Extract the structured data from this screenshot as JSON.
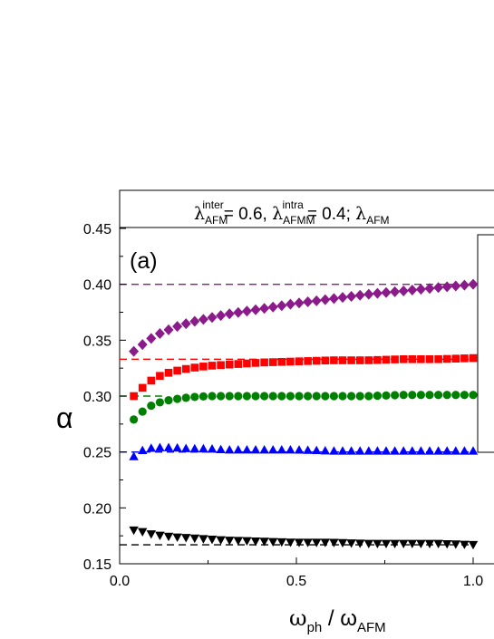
{
  "chart_data": {
    "type": "scatter",
    "panel_label": "(a)",
    "header": {
      "sym1": "λ",
      "sub1": "AFM",
      "sup1": "inter",
      "val1": "= 0.6, ",
      "sym2": "λ",
      "sub2": "AFMM",
      "sup2": "intra",
      "val2": "= 0.4; ",
      "sym3": "λ",
      "sub3": "AFM"
    },
    "xlabel": {
      "main": "ω",
      "sub": "ph",
      "slash": " / ω",
      "sub2": "AFM"
    },
    "ylabel": "α",
    "xlim": [
      0.0,
      1.08
    ],
    "ylim": [
      0.15,
      0.455
    ],
    "x_ticks": [
      {
        "v": 0.0,
        "label": "0.0"
      },
      {
        "v": 0.5,
        "label": "0.5"
      },
      {
        "v": 1.0,
        "label": "1.0"
      }
    ],
    "y_ticks": [
      {
        "v": 0.15,
        "label": "0.15"
      },
      {
        "v": 0.2,
        "label": "0.20"
      },
      {
        "v": 0.25,
        "label": "0.25"
      },
      {
        "v": 0.3,
        "label": "0.30"
      },
      {
        "v": 0.35,
        "label": "0.35"
      },
      {
        "v": 0.4,
        "label": "0.40"
      },
      {
        "v": 0.45,
        "label": "0.45"
      }
    ],
    "ref_lines": [
      {
        "y": 0.4,
        "color": "#8b1a8b",
        "x_end": 0.98
      },
      {
        "y": 0.333,
        "color": "#ff0000",
        "x_end": 1.0
      },
      {
        "y": 0.3,
        "color": "#008000",
        "x_end": 0.12
      },
      {
        "y": 0.25,
        "color": "#0000ff",
        "x_end": 1.0
      },
      {
        "y": 0.167,
        "color": "#000000",
        "x_end": 1.0
      }
    ],
    "series": [
      {
        "marker": "diamond",
        "color": "#8b1a8b",
        "x": [
          0.04,
          0.08,
          0.12,
          0.16,
          0.2,
          0.3,
          0.4,
          0.5,
          0.6,
          0.7,
          0.8,
          0.9,
          1.0
        ],
        "y": [
          0.34,
          0.35,
          0.357,
          0.362,
          0.366,
          0.373,
          0.378,
          0.383,
          0.387,
          0.391,
          0.394,
          0.397,
          0.4
        ]
      },
      {
        "marker": "square",
        "color": "#ff0000",
        "x": [
          0.04,
          0.06,
          0.08,
          0.1,
          0.12,
          0.15,
          0.2,
          0.25,
          0.3,
          0.4,
          0.5,
          0.6,
          0.7,
          0.8,
          0.9,
          1.0
        ],
        "y": [
          0.3,
          0.306,
          0.312,
          0.316,
          0.319,
          0.322,
          0.325,
          0.327,
          0.328,
          0.33,
          0.331,
          0.332,
          0.332,
          0.333,
          0.333,
          0.334
        ]
      },
      {
        "marker": "circle",
        "color": "#008000",
        "x": [
          0.04,
          0.06,
          0.08,
          0.1,
          0.12,
          0.15,
          0.2,
          0.25,
          0.3,
          0.4,
          0.5,
          0.6,
          0.7,
          0.8,
          0.9,
          1.0
        ],
        "y": [
          0.279,
          0.285,
          0.29,
          0.293,
          0.295,
          0.297,
          0.299,
          0.3,
          0.3,
          0.3,
          0.3,
          0.3,
          0.3,
          0.301,
          0.301,
          0.301
        ]
      },
      {
        "marker": "triangle-up",
        "color": "#0000ff",
        "x": [
          0.04,
          0.06,
          0.08,
          0.1,
          0.12,
          0.15,
          0.2,
          0.25,
          0.3,
          0.4,
          0.5,
          0.6,
          0.7,
          0.8,
          0.9,
          1.0
        ],
        "y": [
          0.246,
          0.251,
          0.253,
          0.254,
          0.254,
          0.254,
          0.253,
          0.253,
          0.252,
          0.252,
          0.252,
          0.251,
          0.251,
          0.251,
          0.251,
          0.251
        ]
      },
      {
        "marker": "triangle-down",
        "color": "#000000",
        "x": [
          0.04,
          0.06,
          0.08,
          0.1,
          0.12,
          0.15,
          0.2,
          0.25,
          0.3,
          0.4,
          0.5,
          0.6,
          0.7,
          0.8,
          0.9,
          1.0
        ],
        "y": [
          0.18,
          0.179,
          0.177,
          0.176,
          0.175,
          0.174,
          0.173,
          0.172,
          0.171,
          0.17,
          0.169,
          0.169,
          0.168,
          0.168,
          0.168,
          0.167
        ]
      }
    ]
  }
}
